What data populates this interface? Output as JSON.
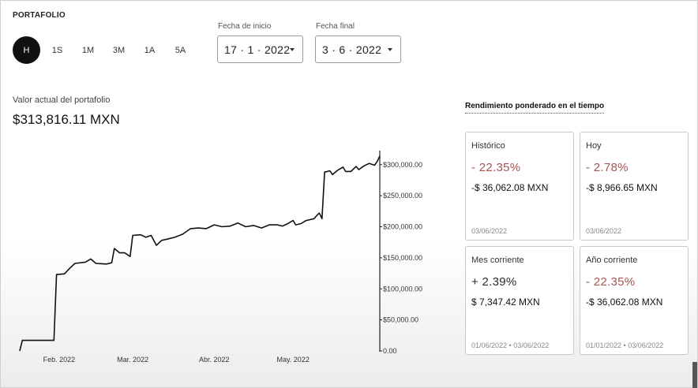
{
  "header": {
    "title": "PORTAFOLIO"
  },
  "periods": [
    "H",
    "1S",
    "1M",
    "3M",
    "1A",
    "5A"
  ],
  "active_period": "H",
  "dates": {
    "start_label": "Fecha de inicio",
    "start_value": "17 · 1 · 2022",
    "end_label": "Fecha final",
    "end_value": "3 · 6 · 2022"
  },
  "portfolio": {
    "value_label": "Valor actual del portafolio",
    "value": "$313,816.11 MXN"
  },
  "chart_data": {
    "type": "line",
    "title": "",
    "xlabel": "",
    "ylabel": "",
    "ylim": [
      0,
      320000
    ],
    "grid": false,
    "color": "#111111",
    "x_range": [
      "2022-01-17",
      "2022-06-03"
    ],
    "x_ticks": [
      {
        "date": "2022-02-01",
        "label": "Feb. 2022"
      },
      {
        "date": "2022-03-01",
        "label": "Mar. 2022"
      },
      {
        "date": "2022-04-01",
        "label": "Abr. 2022"
      },
      {
        "date": "2022-05-01",
        "label": "May. 2022"
      }
    ],
    "y_ticks": [
      {
        "value": 0,
        "label": "0.00"
      },
      {
        "value": 50000,
        "label": "$50,000.00"
      },
      {
        "value": 100000,
        "label": "$100,000.00"
      },
      {
        "value": 150000,
        "label": "$150,000.00"
      },
      {
        "value": 200000,
        "label": "$200,000.00"
      },
      {
        "value": 250000,
        "label": "$250,000.00"
      },
      {
        "value": 300000,
        "label": "$300,000.00"
      }
    ],
    "series": [
      {
        "points": [
          [
            "2022-01-17",
            0
          ],
          [
            "2022-01-18",
            17000
          ],
          [
            "2022-01-30",
            17000
          ],
          [
            "2022-01-31",
            123000
          ],
          [
            "2022-02-03",
            124000
          ],
          [
            "2022-02-05",
            133000
          ],
          [
            "2022-02-07",
            141000
          ],
          [
            "2022-02-11",
            143000
          ],
          [
            "2022-02-13",
            148000
          ],
          [
            "2022-02-15",
            141000
          ],
          [
            "2022-02-19",
            140000
          ],
          [
            "2022-02-21",
            142000
          ],
          [
            "2022-02-22",
            165000
          ],
          [
            "2022-02-24",
            158000
          ],
          [
            "2022-02-26",
            158000
          ],
          [
            "2022-02-28",
            152000
          ],
          [
            "2022-03-01",
            186000
          ],
          [
            "2022-03-04",
            187000
          ],
          [
            "2022-03-06",
            183000
          ],
          [
            "2022-03-08",
            186000
          ],
          [
            "2022-03-10",
            170000
          ],
          [
            "2022-03-12",
            178000
          ],
          [
            "2022-03-14",
            180000
          ],
          [
            "2022-03-17",
            183000
          ],
          [
            "2022-03-20",
            188000
          ],
          [
            "2022-03-23",
            197000
          ],
          [
            "2022-03-26",
            198000
          ],
          [
            "2022-03-29",
            197000
          ],
          [
            "2022-04-01",
            203000
          ],
          [
            "2022-04-04",
            200000
          ],
          [
            "2022-04-07",
            201000
          ],
          [
            "2022-04-10",
            206000
          ],
          [
            "2022-04-13",
            200000
          ],
          [
            "2022-04-16",
            202000
          ],
          [
            "2022-04-19",
            198000
          ],
          [
            "2022-04-22",
            203000
          ],
          [
            "2022-04-25",
            203000
          ],
          [
            "2022-04-27",
            201000
          ],
          [
            "2022-04-29",
            205000
          ],
          [
            "2022-05-01",
            210000
          ],
          [
            "2022-05-02",
            203000
          ],
          [
            "2022-05-04",
            205000
          ],
          [
            "2022-05-06",
            210000
          ],
          [
            "2022-05-09",
            213000
          ],
          [
            "2022-05-10",
            218000
          ],
          [
            "2022-05-11",
            222000
          ],
          [
            "2022-05-12",
            213000
          ],
          [
            "2022-05-13",
            288000
          ],
          [
            "2022-05-15",
            290000
          ],
          [
            "2022-05-16",
            284000
          ],
          [
            "2022-05-18",
            291000
          ],
          [
            "2022-05-20",
            296000
          ],
          [
            "2022-05-21",
            289000
          ],
          [
            "2022-05-23",
            289000
          ],
          [
            "2022-05-25",
            297000
          ],
          [
            "2022-05-26",
            292000
          ],
          [
            "2022-05-28",
            298000
          ],
          [
            "2022-05-30",
            302000
          ],
          [
            "2022-06-01",
            299000
          ],
          [
            "2022-06-02",
            305000
          ],
          [
            "2022-06-03",
            313816
          ]
        ]
      }
    ]
  },
  "twr": {
    "title": "Rendimiento ponderado en el tiempo",
    "cards": [
      {
        "label": "Histórico",
        "percent": "- 22.35%",
        "positive": false,
        "amount": "-$ 36,062.08 MXN",
        "date": "03/06/2022"
      },
      {
        "label": "Hoy",
        "percent": "- 2.78%",
        "positive": false,
        "amount": "-$ 8,966.65 MXN",
        "date": "03/06/2022"
      },
      {
        "label": "Mes corriente",
        "percent": "+ 2.39%",
        "positive": true,
        "amount": "$ 7,347.42 MXN",
        "date": "01/06/2022 • 03/06/2022"
      },
      {
        "label": "Año corriente",
        "percent": "- 22.35%",
        "positive": false,
        "amount": "-$ 36,062.08 MXN",
        "date": "01/01/2022 • 03/06/2022"
      }
    ]
  }
}
